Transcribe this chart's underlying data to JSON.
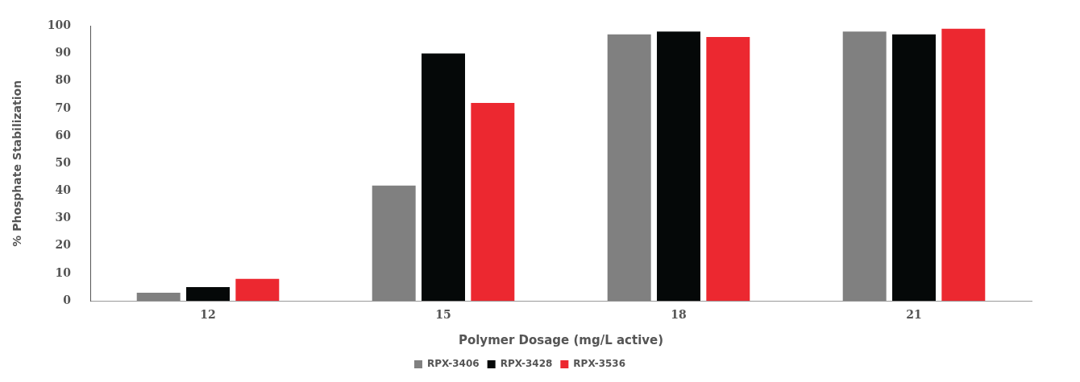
{
  "chart_data": {
    "type": "bar",
    "xlabel": "Polymer Dosage (mg/L active)",
    "ylabel": "% Phosphate Stabilization",
    "categories": [
      "12",
      "15",
      "18",
      "21"
    ],
    "series": [
      {
        "name": "RPX-3406",
        "color": "#808080",
        "values": [
          3,
          42,
          97,
          98
        ]
      },
      {
        "name": "RPX-3428",
        "color": "#050808",
        "values": [
          5,
          90,
          98,
          97
        ]
      },
      {
        "name": "RPX-3536",
        "color": "#ec2830",
        "values": [
          8,
          72,
          96,
          99
        ]
      }
    ],
    "ylim": [
      0,
      100
    ],
    "yticks": [
      0,
      10,
      20,
      30,
      40,
      50,
      60,
      70,
      80,
      90,
      100
    ],
    "grid": false,
    "legend": "bottom"
  }
}
